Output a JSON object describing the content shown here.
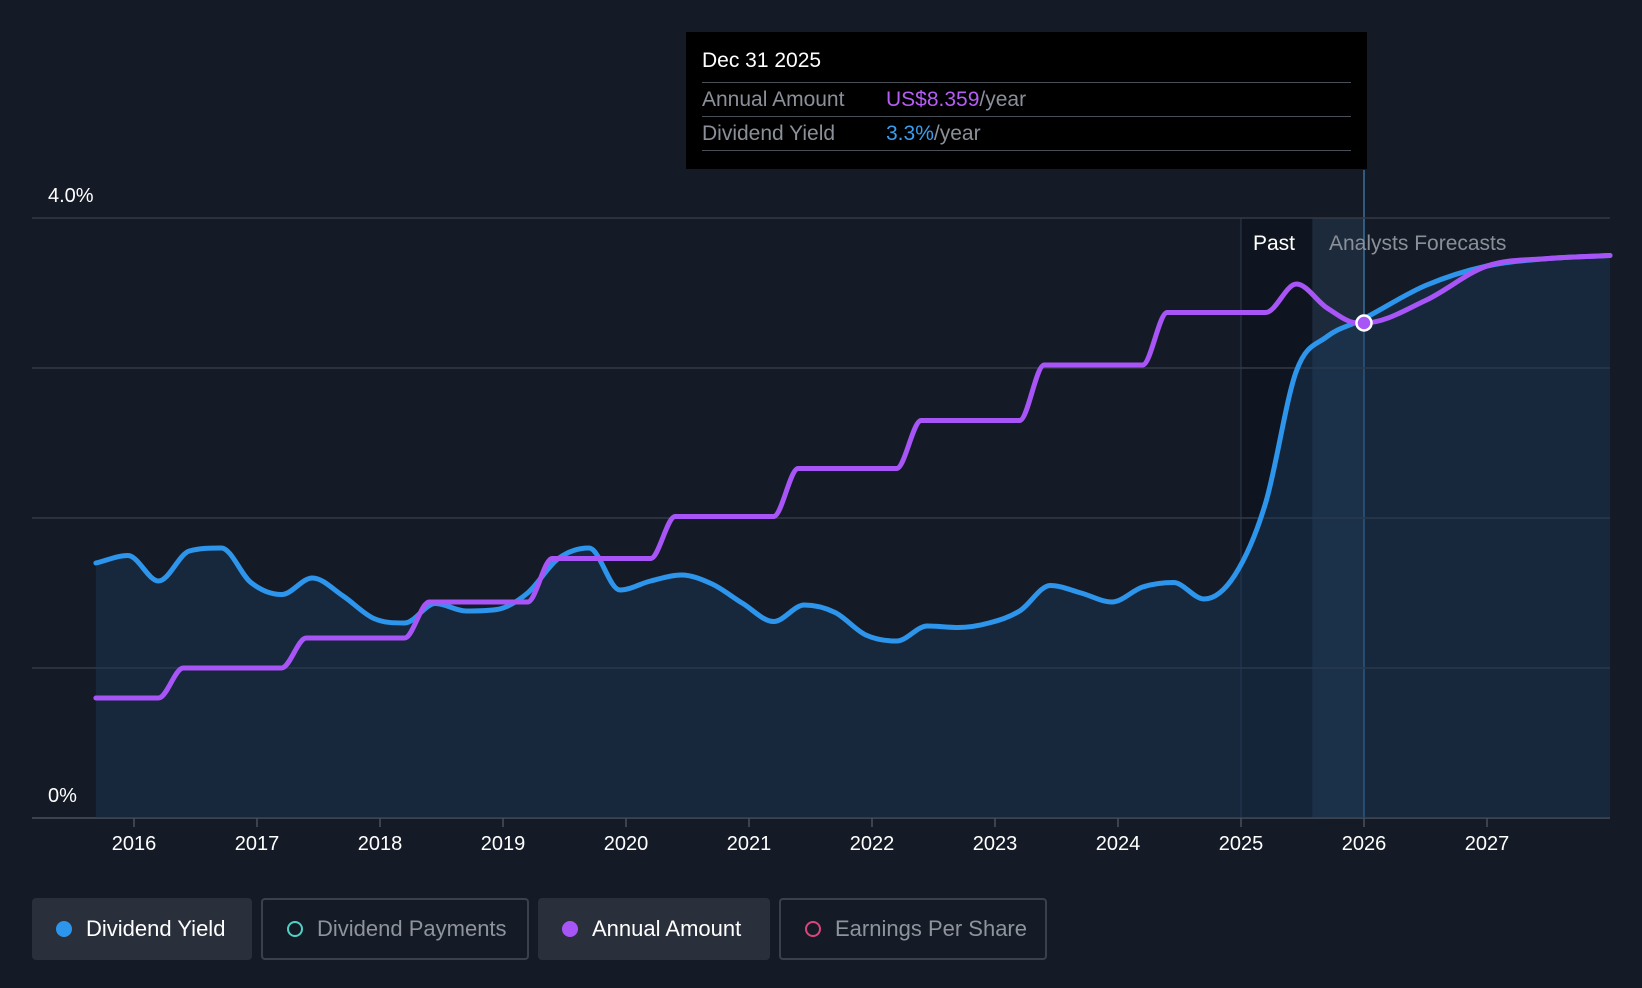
{
  "tooltip": {
    "date": "Dec 31 2025",
    "rows": [
      {
        "label": "Annual Amount",
        "value": "US$8.359",
        "unit": "/year"
      },
      {
        "label": "Dividend Yield",
        "value": "3.3%",
        "unit": "/year"
      }
    ]
  },
  "legend": [
    {
      "label": "Dividend Yield",
      "color": "#2d95ec",
      "active": true
    },
    {
      "label": "Dividend Payments",
      "color": "#4fd1c5",
      "active": false
    },
    {
      "label": "Annual Amount",
      "color": "#a855f7",
      "active": true
    },
    {
      "label": "Earnings Per Share",
      "color": "#d9467c",
      "active": false
    }
  ],
  "chart_data": {
    "type": "line",
    "x_ticks": [
      "2016",
      "2017",
      "2018",
      "2019",
      "2020",
      "2021",
      "2022",
      "2023",
      "2024",
      "2025",
      "2026",
      "2027"
    ],
    "y_labels": [
      "4.0%",
      "0%"
    ],
    "ylim": [
      0,
      4.0
    ],
    "xlim": [
      2015.0,
      2028.0
    ],
    "grid": true,
    "regions": {
      "past_label": "Past",
      "forecast_label": "Analysts Forecasts",
      "past_end": 2025.0,
      "forecast_start": 2025.58,
      "cursor": 2026.0
    },
    "series": [
      {
        "name": "Dividend Yield",
        "color": "#2d95ec",
        "x": [
          2015.69,
          2015.95,
          2016.2,
          2016.45,
          2016.71,
          2016.95,
          2017.2,
          2017.45,
          2017.7,
          2017.95,
          2018.2,
          2018.45,
          2018.7,
          2018.95,
          2019.2,
          2019.45,
          2019.7,
          2019.95,
          2020.2,
          2020.45,
          2020.7,
          2020.95,
          2021.2,
          2021.45,
          2021.7,
          2021.95,
          2022.2,
          2022.45,
          2022.7,
          2022.95,
          2023.2,
          2023.45,
          2023.7,
          2023.95,
          2024.2,
          2024.45,
          2024.7,
          2024.95,
          2025.2,
          2025.45,
          2025.7,
          2025.95,
          2026.0,
          2026.5,
          2027.0,
          2027.5,
          2028.0
        ],
        "values": [
          1.7,
          1.75,
          1.58,
          1.78,
          1.8,
          1.57,
          1.49,
          1.6,
          1.48,
          1.33,
          1.3,
          1.43,
          1.38,
          1.39,
          1.5,
          1.73,
          1.8,
          1.52,
          1.58,
          1.62,
          1.56,
          1.43,
          1.31,
          1.42,
          1.37,
          1.22,
          1.18,
          1.28,
          1.27,
          1.3,
          1.38,
          1.55,
          1.5,
          1.44,
          1.54,
          1.57,
          1.46,
          1.62,
          2.1,
          2.98,
          3.21,
          3.31,
          3.33,
          3.55,
          3.68,
          3.73,
          3.75
        ]
      },
      {
        "name": "Annual Amount",
        "color": "#a855f7",
        "x": [
          2015.69,
          2016.2,
          2016.4,
          2017.2,
          2017.4,
          2018.2,
          2018.4,
          2019.2,
          2019.4,
          2020.2,
          2020.4,
          2021.2,
          2021.4,
          2022.2,
          2022.4,
          2023.2,
          2023.4,
          2024.2,
          2024.4,
          2025.2,
          2025.45,
          2025.7,
          2025.95,
          2026.0,
          2026.5,
          2027.0,
          2027.5,
          2028.0
        ],
        "values": [
          0.8,
          0.8,
          1.0,
          1.0,
          1.2,
          1.2,
          1.44,
          1.44,
          1.73,
          1.73,
          2.01,
          2.01,
          2.33,
          2.33,
          2.65,
          2.65,
          3.02,
          3.02,
          3.37,
          3.37,
          3.56,
          3.4,
          3.3,
          3.3,
          3.45,
          3.68,
          3.73,
          3.75
        ]
      }
    ]
  }
}
